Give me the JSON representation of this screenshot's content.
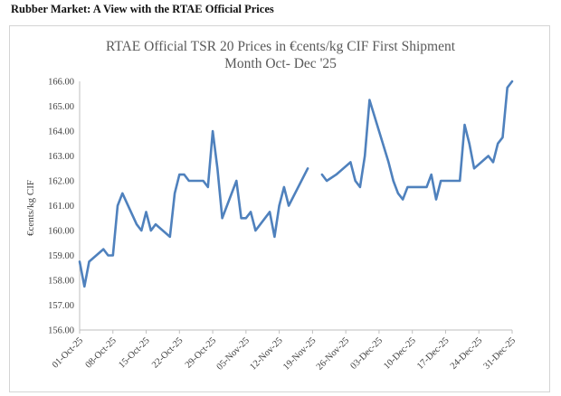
{
  "page": {
    "heading": "Rubber Market: A View with the RTAE Official Prices"
  },
  "chart_data": {
    "type": "line",
    "title_line1": "RTAE Official TSR 20 Prices in €cents/kg CIF First Shipment",
    "title_line2": "Month Oct- Dec '25",
    "xlabel": "",
    "ylabel": "€cents/kg CIF",
    "ylim": [
      156.0,
      166.0
    ],
    "yticks": [
      "156.00",
      "157.00",
      "158.00",
      "159.00",
      "160.00",
      "161.00",
      "162.00",
      "163.00",
      "164.00",
      "165.00",
      "166.00"
    ],
    "xticks": [
      "01-Oct-25",
      "08-Oct-25",
      "15-Oct-25",
      "22-Oct-25",
      "29-Oct-25",
      "05-Nov-25",
      "12-Nov-25",
      "19-Nov-25",
      "26-Nov-25",
      "03-Dec-25",
      "10-Dec-25",
      "17-Dec-25",
      "24-Dec-25",
      "31-Dec-25"
    ],
    "grid": false,
    "line_color": "#4f81bd",
    "series": [
      {
        "segments": [
          [
            [
              "2025-10-01",
              158.75
            ],
            [
              "2025-10-02",
              157.75
            ],
            [
              "2025-10-03",
              158.75
            ],
            [
              "2025-10-06",
              159.25
            ],
            [
              "2025-10-07",
              159.0
            ],
            [
              "2025-10-08",
              159.0
            ],
            [
              "2025-10-09",
              161.0
            ],
            [
              "2025-10-10",
              161.5
            ],
            [
              "2025-10-13",
              160.25
            ],
            [
              "2025-10-14",
              160.0
            ],
            [
              "2025-10-15",
              160.75
            ],
            [
              "2025-10-16",
              160.0
            ],
            [
              "2025-10-17",
              160.25
            ],
            [
              "2025-10-20",
              159.75
            ],
            [
              "2025-10-21",
              161.5
            ],
            [
              "2025-10-22",
              162.25
            ],
            [
              "2025-10-23",
              162.25
            ],
            [
              "2025-10-24",
              162.0
            ],
            [
              "2025-10-27",
              162.0
            ],
            [
              "2025-10-28",
              161.75
            ],
            [
              "2025-10-29",
              164.0
            ],
            [
              "2025-10-30",
              162.5
            ],
            [
              "2025-10-31",
              160.5
            ],
            [
              "2025-11-03",
              162.0
            ],
            [
              "2025-11-04",
              160.5
            ],
            [
              "2025-11-05",
              160.5
            ],
            [
              "2025-11-06",
              160.75
            ],
            [
              "2025-11-07",
              160.0
            ],
            [
              "2025-11-10",
              160.75
            ],
            [
              "2025-11-11",
              159.75
            ],
            [
              "2025-11-12",
              161.0
            ],
            [
              "2025-11-13",
              161.75
            ],
            [
              "2025-11-14",
              161.0
            ],
            [
              "2025-11-18",
              162.5
            ]
          ],
          [
            [
              "2025-11-21",
              162.25
            ],
            [
              "2025-11-22",
              162.0
            ],
            [
              "2025-11-24",
              162.25
            ],
            [
              "2025-11-27",
              162.75
            ],
            [
              "2025-11-28",
              162.0
            ],
            [
              "2025-11-29",
              161.75
            ],
            [
              "2025-11-30",
              163.0
            ],
            [
              "2025-12-01",
              165.25
            ],
            [
              "2025-12-03",
              164.0
            ],
            [
              "2025-12-05",
              162.75
            ],
            [
              "2025-12-06",
              162.0
            ],
            [
              "2025-12-07",
              161.5
            ],
            [
              "2025-12-08",
              161.25
            ],
            [
              "2025-12-09",
              161.75
            ],
            [
              "2025-12-12",
              161.75
            ],
            [
              "2025-12-13",
              161.75
            ],
            [
              "2025-12-14",
              162.25
            ],
            [
              "2025-12-15",
              161.25
            ],
            [
              "2025-12-16",
              162.0
            ],
            [
              "2025-12-17",
              162.0
            ],
            [
              "2025-12-20",
              162.0
            ],
            [
              "2025-12-21",
              164.25
            ],
            [
              "2025-12-22",
              163.5
            ],
            [
              "2025-12-23",
              162.5
            ],
            [
              "2025-12-26",
              163.0
            ],
            [
              "2025-12-27",
              162.75
            ],
            [
              "2025-12-28",
              163.5
            ],
            [
              "2025-12-29",
              163.75
            ],
            [
              "2025-12-30",
              165.75
            ],
            [
              "2025-12-31",
              166.0
            ]
          ]
        ]
      }
    ]
  }
}
